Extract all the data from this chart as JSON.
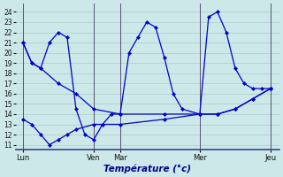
{
  "xlabel": "Température (°c)",
  "background_color": "#cce8e8",
  "grid_color": "#aacccc",
  "line_color": "#0000cc",
  "ylim": [
    10.5,
    24.8
  ],
  "yticks": [
    11,
    12,
    13,
    14,
    15,
    16,
    17,
    18,
    19,
    20,
    21,
    22,
    23,
    24
  ],
  "day_labels": [
    "Lun",
    "Ven",
    "Mar",
    "Mer",
    "Jeu"
  ],
  "day_x": [
    0,
    8,
    11,
    20,
    28
  ],
  "n_points": 29,
  "line1_x": [
    0,
    1,
    2,
    4,
    6,
    8,
    11,
    16,
    20,
    22,
    24,
    26,
    28
  ],
  "line1_y": [
    21,
    19,
    18.5,
    17,
    16,
    14.5,
    14,
    14,
    14,
    14,
    14.5,
    15.5,
    16.5
  ],
  "line2_x": [
    0,
    1,
    2,
    3,
    4,
    5,
    6,
    8,
    11,
    16,
    20,
    22,
    24,
    26,
    28
  ],
  "line2_y": [
    13.5,
    13,
    12,
    11,
    11.5,
    12,
    12.5,
    13,
    13,
    13.5,
    14,
    14,
    14.5,
    15.5,
    16.5
  ],
  "line3_x": [
    0,
    1,
    2,
    3,
    4,
    5,
    6,
    7,
    8,
    9,
    10,
    11,
    12,
    13,
    14,
    15,
    16,
    17,
    18,
    20,
    21,
    22,
    23,
    24,
    25,
    26,
    27,
    28
  ],
  "line3_y": [
    21,
    19,
    18.5,
    21,
    22,
    21.5,
    14.5,
    12,
    11.5,
    13,
    14,
    14,
    20,
    21.5,
    23,
    22.5,
    19.5,
    16,
    14.5,
    14,
    23.5,
    24,
    22,
    18.5,
    17,
    16.5,
    16.5,
    16.5
  ]
}
